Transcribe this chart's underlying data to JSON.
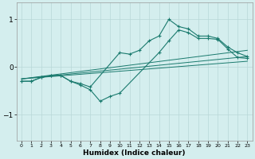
{
  "xlabel": "Humidex (Indice chaleur)",
  "bg_color": "#d4eeee",
  "line_color": "#1a7a6e",
  "grid_color": "#b8d8d8",
  "xlim": [
    -0.5,
    23.5
  ],
  "ylim": [
    -1.55,
    1.35
  ],
  "yticks": [
    -1,
    0,
    1
  ],
  "xticks": [
    0,
    1,
    2,
    3,
    4,
    5,
    6,
    7,
    8,
    9,
    10,
    11,
    12,
    13,
    14,
    15,
    16,
    17,
    18,
    19,
    20,
    21,
    22,
    23
  ],
  "curve1_x": [
    0,
    1,
    2,
    3,
    4,
    5,
    6,
    7,
    10,
    11,
    12,
    13,
    14,
    15,
    16,
    17,
    18,
    19,
    20,
    21,
    22,
    23
  ],
  "curve1_y": [
    -0.3,
    -0.3,
    -0.22,
    -0.18,
    -0.18,
    -0.3,
    -0.35,
    -0.42,
    0.3,
    0.27,
    0.35,
    0.55,
    0.65,
    1.0,
    0.85,
    0.8,
    0.65,
    0.65,
    0.6,
    0.42,
    0.3,
    0.22
  ],
  "curve2_x": [
    0,
    1,
    2,
    3,
    4,
    5,
    6,
    7,
    8,
    9,
    10,
    14,
    15,
    16,
    17,
    18,
    19,
    20,
    21,
    22,
    23
  ],
  "curve2_y": [
    -0.3,
    -0.3,
    -0.22,
    -0.18,
    -0.18,
    -0.3,
    -0.38,
    -0.48,
    -0.72,
    -0.62,
    -0.55,
    0.3,
    0.55,
    0.78,
    0.72,
    0.6,
    0.6,
    0.58,
    0.38,
    0.2,
    0.18
  ],
  "trend1_x": [
    0,
    23
  ],
  "trend1_y": [
    -0.25,
    0.35
  ],
  "trend2_x": [
    0,
    23
  ],
  "trend2_y": [
    -0.25,
    0.22
  ],
  "trend3_x": [
    0,
    23
  ],
  "trend3_y": [
    -0.25,
    0.12
  ]
}
